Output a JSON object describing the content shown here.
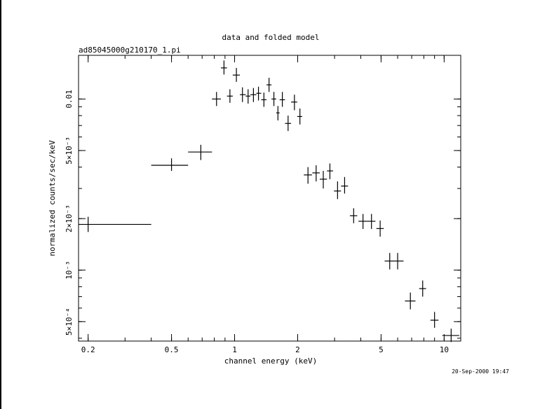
{
  "chart_data": {
    "type": "scatter",
    "title": "data and folded model",
    "subtitle": "ad85045000g210170_1.pi",
    "xlabel": "channel energy (keV)",
    "ylabel": "normalized counts/sec/keV",
    "x_scale": "log",
    "y_scale": "log",
    "xlim": [
      0.18,
      12
    ],
    "ylim": [
      0.000385,
      0.018
    ],
    "grid": false,
    "x_ticks": [
      {
        "value": 0.2,
        "label": "0.2"
      },
      {
        "value": 0.5,
        "label": "0.5"
      },
      {
        "value": 1,
        "label": "1"
      },
      {
        "value": 2,
        "label": "2"
      },
      {
        "value": 5,
        "label": "5"
      },
      {
        "value": 10,
        "label": "10"
      }
    ],
    "y_ticks": [
      {
        "value": 0.0005,
        "label": "5×10⁻⁴"
      },
      {
        "value": 0.001,
        "label": "10⁻³"
      },
      {
        "value": 0.002,
        "label": "2×10⁻³"
      },
      {
        "value": 0.005,
        "label": "5×10⁻³"
      },
      {
        "value": 0.01,
        "label": "0.01"
      }
    ],
    "series": [
      {
        "points": [
          {
            "x": 0.2,
            "xlo": 0.18,
            "xhi": 0.4,
            "y": 0.00185,
            "ylo": 0.00167,
            "yhi": 0.00205
          },
          {
            "x": 0.5,
            "xlo": 0.4,
            "xhi": 0.6,
            "y": 0.0041,
            "ylo": 0.0038,
            "yhi": 0.0045
          },
          {
            "x": 0.69,
            "xlo": 0.6,
            "xhi": 0.78,
            "y": 0.0049,
            "ylo": 0.0044,
            "yhi": 0.0054
          },
          {
            "x": 0.82,
            "xlo": 0.78,
            "xhi": 0.86,
            "y": 0.01,
            "ylo": 0.0091,
            "yhi": 0.011
          },
          {
            "x": 0.89,
            "xlo": 0.86,
            "xhi": 0.92,
            "y": 0.0152,
            "ylo": 0.0139,
            "yhi": 0.0168
          },
          {
            "x": 0.95,
            "xlo": 0.92,
            "xhi": 0.98,
            "y": 0.0104,
            "ylo": 0.0095,
            "yhi": 0.0114
          },
          {
            "x": 1.02,
            "xlo": 0.98,
            "xhi": 1.06,
            "y": 0.0138,
            "ylo": 0.0126,
            "yhi": 0.0152
          },
          {
            "x": 1.09,
            "xlo": 1.06,
            "xhi": 1.13,
            "y": 0.0106,
            "ylo": 0.0096,
            "yhi": 0.0117
          },
          {
            "x": 1.16,
            "xlo": 1.13,
            "xhi": 1.19,
            "y": 0.0104,
            "ylo": 0.0094,
            "yhi": 0.0114
          },
          {
            "x": 1.23,
            "xlo": 1.19,
            "xhi": 1.27,
            "y": 0.0106,
            "ylo": 0.0096,
            "yhi": 0.0116
          },
          {
            "x": 1.3,
            "xlo": 1.27,
            "xhi": 1.34,
            "y": 0.0108,
            "ylo": 0.0098,
            "yhi": 0.0118
          },
          {
            "x": 1.38,
            "xlo": 1.34,
            "xhi": 1.42,
            "y": 0.0099,
            "ylo": 0.009,
            "yhi": 0.0109
          },
          {
            "x": 1.46,
            "xlo": 1.42,
            "xhi": 1.5,
            "y": 0.0121,
            "ylo": 0.011,
            "yhi": 0.0133
          },
          {
            "x": 1.54,
            "xlo": 1.5,
            "xhi": 1.58,
            "y": 0.01,
            "ylo": 0.0091,
            "yhi": 0.011
          },
          {
            "x": 1.61,
            "xlo": 1.58,
            "xhi": 1.64,
            "y": 0.0083,
            "ylo": 0.0075,
            "yhi": 0.0091
          },
          {
            "x": 1.69,
            "xlo": 1.64,
            "xhi": 1.74,
            "y": 0.0099,
            "ylo": 0.009,
            "yhi": 0.011
          },
          {
            "x": 1.8,
            "xlo": 1.74,
            "xhi": 1.86,
            "y": 0.0072,
            "ylo": 0.0065,
            "yhi": 0.008
          },
          {
            "x": 1.93,
            "xlo": 1.86,
            "xhi": 1.99,
            "y": 0.0096,
            "ylo": 0.0086,
            "yhi": 0.0106
          },
          {
            "x": 2.05,
            "xlo": 1.99,
            "xhi": 2.1,
            "y": 0.0079,
            "ylo": 0.0071,
            "yhi": 0.0088
          },
          {
            "x": 2.24,
            "xlo": 2.14,
            "xhi": 2.34,
            "y": 0.0036,
            "ylo": 0.0032,
            "yhi": 0.004
          },
          {
            "x": 2.45,
            "xlo": 2.35,
            "xhi": 2.55,
            "y": 0.0037,
            "ylo": 0.0033,
            "yhi": 0.0041
          },
          {
            "x": 2.65,
            "xlo": 2.55,
            "xhi": 2.76,
            "y": 0.0034,
            "ylo": 0.003,
            "yhi": 0.0038
          },
          {
            "x": 2.85,
            "xlo": 2.76,
            "xhi": 2.95,
            "y": 0.0038,
            "ylo": 0.0034,
            "yhi": 0.0042
          },
          {
            "x": 3.1,
            "xlo": 2.98,
            "xhi": 3.22,
            "y": 0.0029,
            "ylo": 0.0026,
            "yhi": 0.0033
          },
          {
            "x": 3.35,
            "xlo": 3.22,
            "xhi": 3.48,
            "y": 0.0031,
            "ylo": 0.0028,
            "yhi": 0.0035
          },
          {
            "x": 3.7,
            "xlo": 3.55,
            "xhi": 3.85,
            "y": 0.00208,
            "ylo": 0.00188,
            "yhi": 0.0023
          },
          {
            "x": 4.1,
            "xlo": 3.9,
            "xhi": 4.3,
            "y": 0.00193,
            "ylo": 0.00174,
            "yhi": 0.00213
          },
          {
            "x": 4.5,
            "xlo": 4.3,
            "xhi": 4.7,
            "y": 0.00193,
            "ylo": 0.00174,
            "yhi": 0.00213
          },
          {
            "x": 4.95,
            "xlo": 4.75,
            "xhi": 5.15,
            "y": 0.00175,
            "ylo": 0.00157,
            "yhi": 0.00195
          },
          {
            "x": 5.5,
            "xlo": 5.2,
            "xhi": 5.8,
            "y": 0.00113,
            "ylo": 0.00101,
            "yhi": 0.00126
          },
          {
            "x": 6.0,
            "xlo": 5.8,
            "xhi": 6.4,
            "y": 0.00113,
            "ylo": 0.00101,
            "yhi": 0.00126
          },
          {
            "x": 6.9,
            "xlo": 6.5,
            "xhi": 7.3,
            "y": 0.00066,
            "ylo": 0.00059,
            "yhi": 0.00074
          },
          {
            "x": 7.9,
            "xlo": 7.6,
            "xhi": 8.2,
            "y": 0.00078,
            "ylo": 0.0007,
            "yhi": 0.00087
          },
          {
            "x": 9.0,
            "xlo": 8.6,
            "xhi": 9.4,
            "y": 0.00051,
            "ylo": 0.00046,
            "yhi": 0.00057
          },
          {
            "x": 10.8,
            "xlo": 9.8,
            "xhi": 11.8,
            "y": 0.000415,
            "ylo": 0.00038,
            "yhi": 0.000455
          }
        ]
      }
    ],
    "timestamp": "20-Sep-2000 19:47"
  }
}
